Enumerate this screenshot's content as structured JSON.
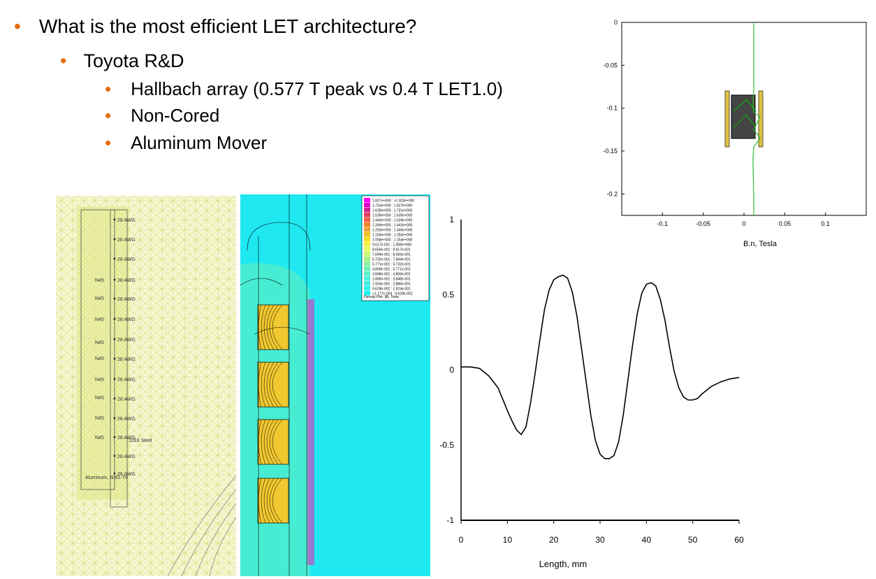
{
  "slide": {
    "bullet_main": "What is the most efficient LET architecture?",
    "bullet_sub": "Toyota R&D",
    "bullet_items": [
      "Hallbach array (0.577 T peak vs 0.4 T LET1.0)",
      "Non-Cored",
      "Aluminum Mover"
    ],
    "bullet_color": "#E46C0A"
  },
  "mesh_labels": {
    "coil": "28 AWG",
    "magnet": "N45",
    "steel": "1018 Steel",
    "aluminum": "Aluminum, 6061-T6"
  },
  "density_legend": {
    "entries": [
      "1.827e+000 : >1.923e+000",
      "1.731e+000 : 1.827e+000",
      "1.635e+000 : 1.731e+000",
      "1.539e+000 : 1.635e+000",
      "1.443e+000 : 1.539e+000",
      "1.346e+000 : 1.443e+000",
      "1.250e+000 : 1.346e+000",
      "1.154e+000 : 1.250e+000",
      "1.058e+000 : 1.154e+000",
      "9.617e-001 : 1.058e+000",
      "8.656e-001 : 9.617e-001",
      "7.694e-001 : 8.656e-001",
      "6.732e-001 : 7.694e-001",
      "5.771e-001 : 6.732e-001",
      "4.809e-001 : 5.771e-001",
      "3.848e-001 : 4.809e-001",
      "2.886e-001 : 3.848e-001",
      "1.924e-001 : 2.886e-001",
      "9.628e-002 : 1.924e-001",
      "<1.177e-004 : 9.628e-002"
    ],
    "colors": [
      "#ff00ff",
      "#e000c8",
      "#d0208c",
      "#e04060",
      "#f06040",
      "#f08030",
      "#f0a030",
      "#f0c020",
      "#f8e020",
      "#f8f040",
      "#e8f860",
      "#c8f870",
      "#a8f080",
      "#88f0a0",
      "#70f0b8",
      "#60f0c8",
      "#50f0d8",
      "#40f0e0",
      "#30f0e8",
      "#20f0f0"
    ],
    "caption": "Density Plot: |B|, Tesla"
  },
  "chart_data": [
    {
      "type": "line",
      "title": "",
      "xlabel": "B.n, Tesla",
      "ylabel": "",
      "xlim": [
        -0.15,
        0.15
      ],
      "ylim": [
        -0.225,
        0
      ],
      "xticks": [
        "-0.1",
        "-0.05",
        "0",
        "0.05",
        "0.1"
      ],
      "yticks": [
        "0",
        "-0.05",
        "-0.1",
        "-0.15",
        "-0.2"
      ],
      "series": [
        {
          "name": "B.n",
          "x": [
            0.012,
            0.012,
            0.011,
            0.012,
            0.02,
            0.012,
            0.02,
            0.012,
            0.011,
            0.012,
            0.012
          ],
          "y": [
            0,
            -0.08,
            -0.095,
            -0.105,
            -0.11,
            -0.125,
            -0.135,
            -0.145,
            -0.16,
            -0.2,
            -0.225
          ]
        }
      ]
    },
    {
      "type": "line",
      "title": "",
      "xlabel": "Length, mm",
      "ylabel": "",
      "xlim": [
        0,
        60
      ],
      "ylim": [
        -1,
        1
      ],
      "xticks": [
        "0",
        "10",
        "20",
        "30",
        "40",
        "50",
        "60"
      ],
      "yticks": [
        "1",
        "0.5",
        "0",
        "-0.5",
        "-1"
      ],
      "series": [
        {
          "name": "B",
          "x": [
            0,
            2,
            4,
            6,
            8,
            10,
            11,
            12,
            13,
            14,
            15,
            16,
            17,
            18,
            19,
            20,
            21,
            22,
            23,
            24,
            25,
            26,
            27,
            28,
            29,
            30,
            31,
            32,
            33,
            34,
            35,
            36,
            37,
            38,
            39,
            40,
            41,
            42,
            43,
            44,
            45,
            46,
            47,
            48,
            49,
            50,
            51,
            52,
            54,
            56,
            58,
            60
          ],
          "y": [
            0.02,
            0.02,
            0.01,
            -0.04,
            -0.12,
            -0.27,
            -0.34,
            -0.4,
            -0.43,
            -0.38,
            -0.22,
            -0.02,
            0.2,
            0.4,
            0.53,
            0.6,
            0.62,
            0.63,
            0.61,
            0.52,
            0.36,
            0.14,
            -0.08,
            -0.3,
            -0.47,
            -0.56,
            -0.59,
            -0.59,
            -0.57,
            -0.48,
            -0.3,
            -0.07,
            0.16,
            0.37,
            0.51,
            0.57,
            0.58,
            0.56,
            0.47,
            0.33,
            0.15,
            -0.01,
            -0.12,
            -0.18,
            -0.2,
            -0.2,
            -0.19,
            -0.16,
            -0.11,
            -0.08,
            -0.06,
            -0.05
          ]
        }
      ]
    }
  ]
}
